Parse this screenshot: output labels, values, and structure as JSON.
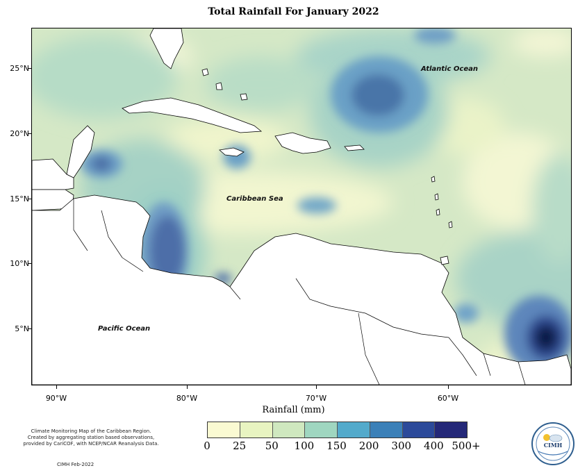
{
  "title": "Total Rainfall For January 2022",
  "axes": {
    "lat_labels": [
      "25°N",
      "20°N",
      "15°N",
      "10°N",
      "5°N"
    ],
    "lon_labels": [
      "90°W",
      "80°W",
      "70°W",
      "60°W"
    ]
  },
  "regions": {
    "atlantic": "Atlantic Ocean",
    "caribbean": "Caribbean Sea",
    "pacific": "Pacific Ocean"
  },
  "legend": {
    "title": "Rainfall (mm)",
    "labels": [
      "0",
      "25",
      "50",
      "100",
      "150",
      "200",
      "300",
      "400",
      "500+"
    ],
    "colors": [
      "#fafad2",
      "#e8f4c1",
      "#cfe8bf",
      "#9fd6c0",
      "#53aacb",
      "#3b80b8",
      "#2c4a9a",
      "#242878",
      "#0b1645"
    ]
  },
  "notes": {
    "line1": "Climate Monitoring Map of the Caribbean Region.",
    "line2": "Created by aggregating station based observations,",
    "line3": "provided by CariCOF, with NCEP/NCAR Reanalysis Data.",
    "credit": "CIMH Feb-2022"
  },
  "logo": {
    "text": "CIMH"
  },
  "colors": {
    "land": "#ffffff",
    "base_field": "#d9e9c8"
  }
}
